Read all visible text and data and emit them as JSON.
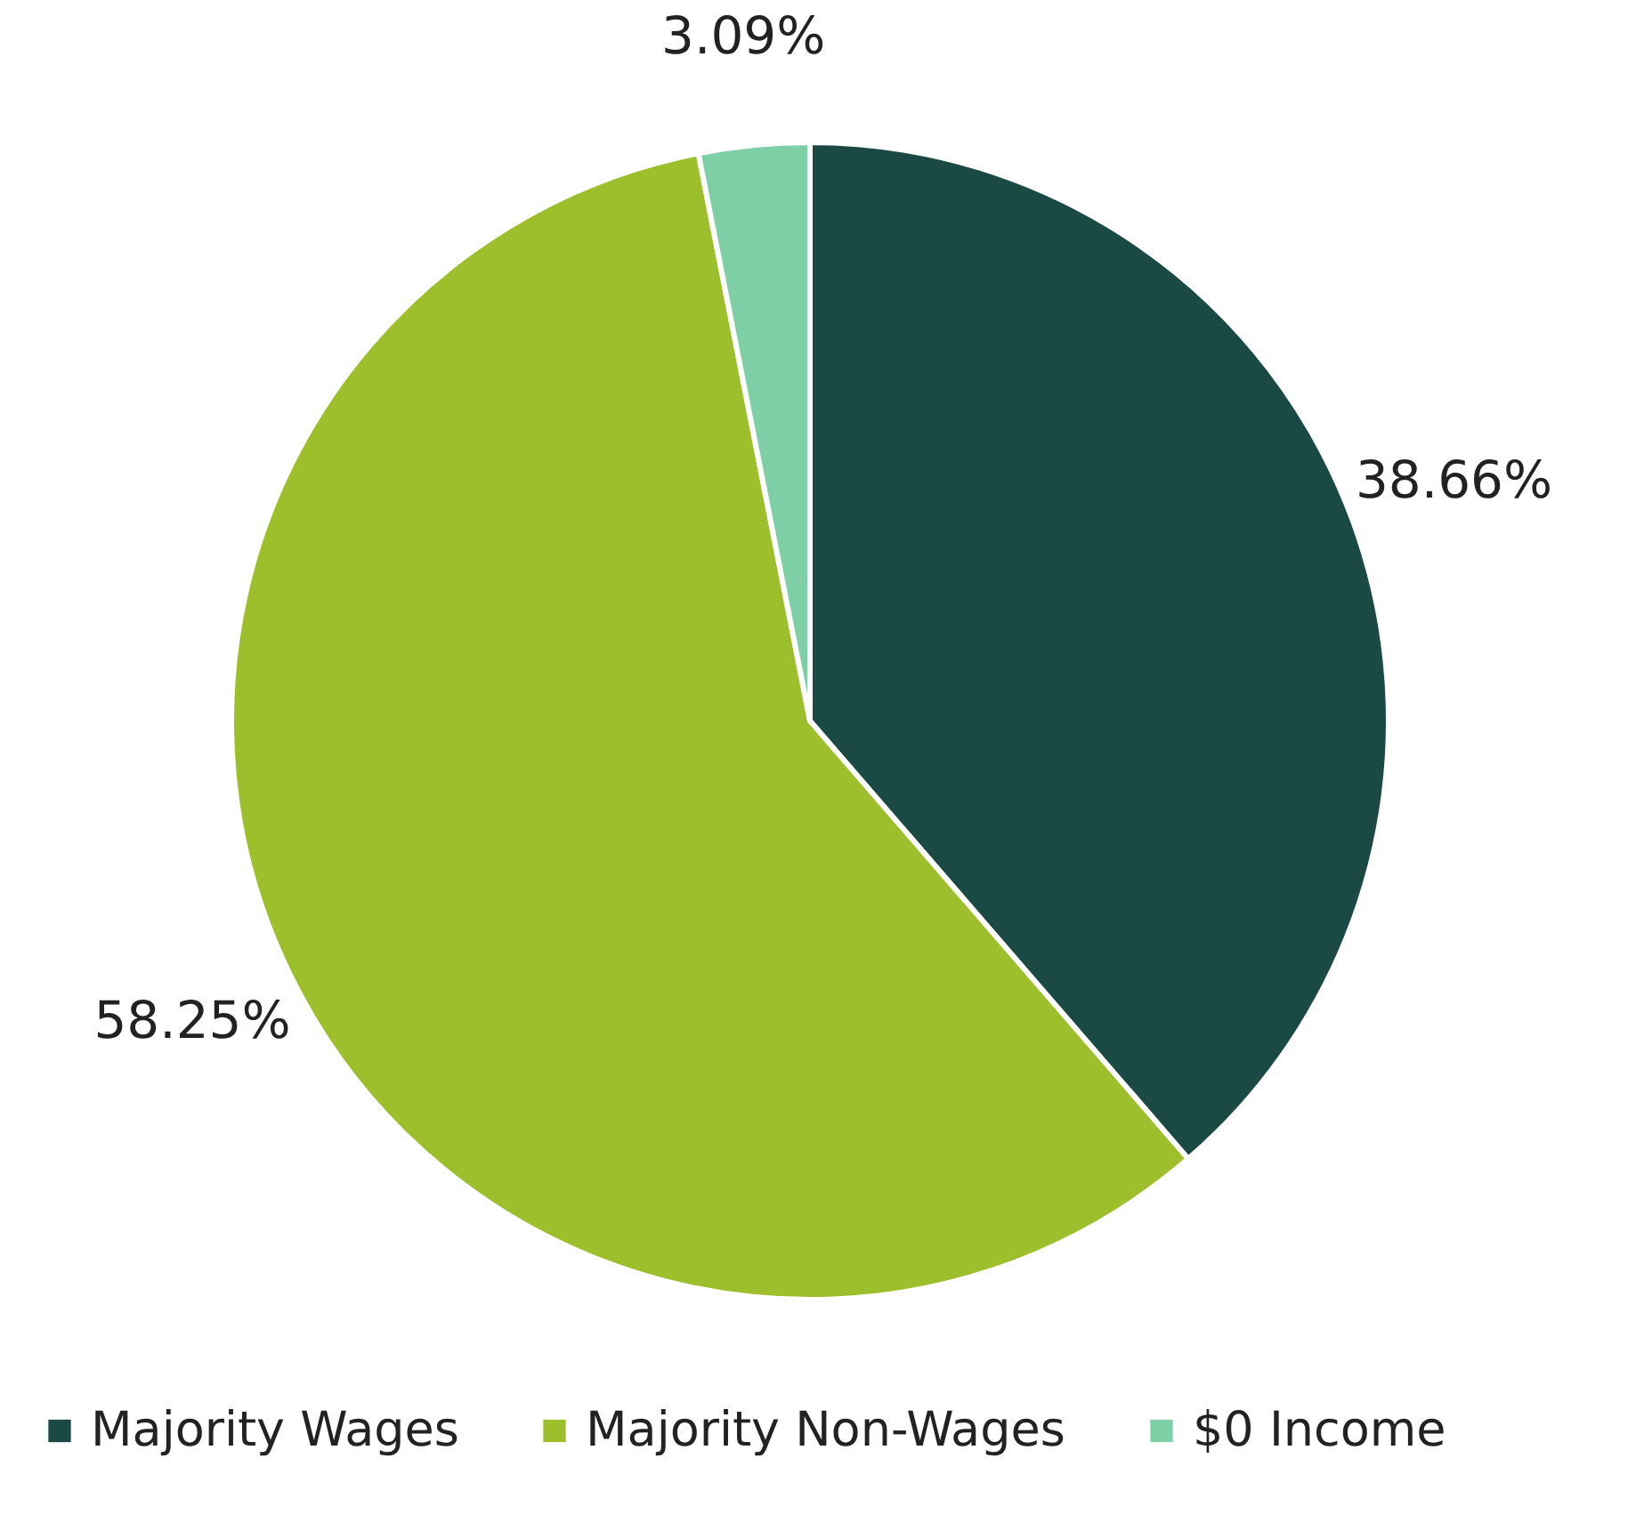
{
  "chart_data": {
    "type": "pie",
    "categories": [
      "Majority Wages",
      "Majority Non-Wages",
      "$0 Income"
    ],
    "values": [
      38.66,
      58.25,
      3.09
    ],
    "colors": [
      "#1b4a45",
      "#9dbf2b",
      "#7fcfa6"
    ],
    "value_labels": [
      "38.66%",
      "58.25%",
      "3.09%"
    ],
    "legend": "bottom"
  }
}
